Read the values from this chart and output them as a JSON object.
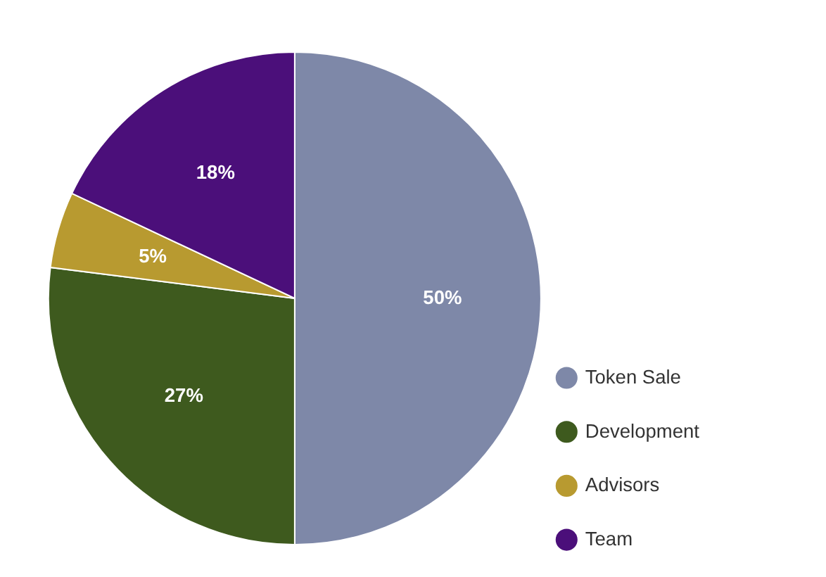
{
  "chart_data": {
    "type": "pie",
    "categories": [
      "Token Sale",
      "Development",
      "Advisors",
      "Team"
    ],
    "values": [
      50,
      27,
      5,
      18
    ],
    "colors": [
      "#7e88a8",
      "#3e5a1e",
      "#b89a30",
      "#4b0f7a"
    ],
    "value_labels": [
      "50%",
      "27%",
      "5%",
      "18%"
    ],
    "legend": "bottom right"
  }
}
